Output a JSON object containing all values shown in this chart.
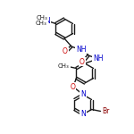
{
  "background_color": "#ffffff",
  "bond_color": "#1a1a1a",
  "N_color": "#0000cc",
  "O_color": "#cc0000",
  "Br_color": "#8B0000",
  "C_color": "#1a1a1a",
  "atoms": {
    "note": "All coordinates in data units (0-100 range), mapped to axes"
  },
  "line_width": 1.0,
  "font_size": 5.5
}
